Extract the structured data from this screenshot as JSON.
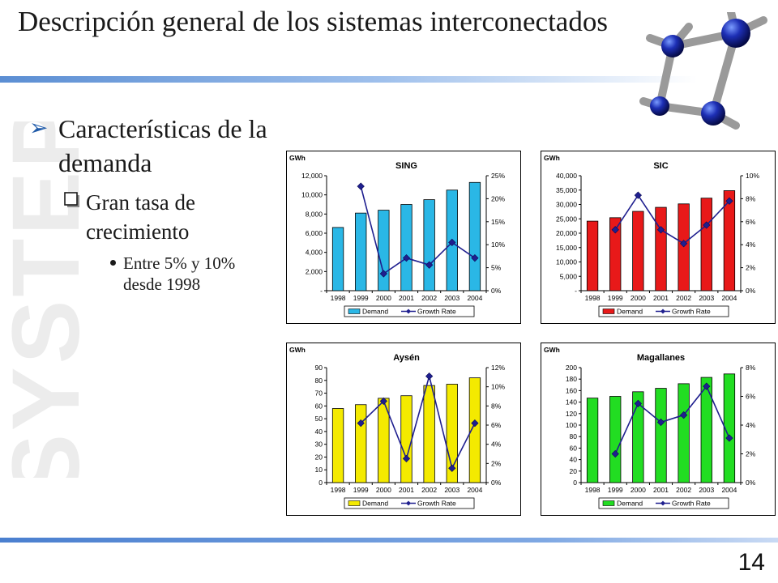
{
  "slide": {
    "title": "Descripción general de los sistemas interconectados",
    "bullet1": "Características de la demanda",
    "bullet2": "Gran tasa de crecimiento",
    "bullet3": "Entre 5% y 10% desde 1998",
    "page_number": "14",
    "watermark": "SYSTEP"
  },
  "colors": {
    "marker_blue": "#1f1f8f",
    "accent_blue": "#1f5aa8"
  },
  "chart_data": [
    {
      "type": "bar",
      "title": "SING",
      "unit_label": "GWh",
      "color": "#2ab7e6",
      "categories": [
        "1998",
        "1999",
        "2000",
        "2001",
        "2002",
        "2003",
        "2004"
      ],
      "series": [
        {
          "name": "Demand",
          "type": "bar",
          "axis": "left",
          "values": [
            6600,
            8100,
            8400,
            9000,
            9500,
            10500,
            11300
          ]
        },
        {
          "name": "Growth Rate",
          "type": "line",
          "axis": "right",
          "values": [
            null,
            0.227,
            0.037,
            0.071,
            0.056,
            0.105,
            0.071
          ]
        }
      ],
      "ylim": [
        0,
        12000
      ],
      "y_ticks": [
        0,
        2000,
        4000,
        6000,
        8000,
        10000,
        12000
      ],
      "y_tick_labels": [
        "-",
        "2,000",
        "4,000",
        "6,000",
        "8,000",
        "10,000",
        "12,000"
      ],
      "y2lim": [
        0,
        0.25
      ],
      "y2_ticks": [
        0,
        0.05,
        0.1,
        0.15,
        0.2,
        0.25
      ],
      "y2_tick_labels": [
        "0%",
        "5%",
        "10%",
        "15%",
        "20%",
        "25%"
      ],
      "legend_position": "bottom",
      "grid": false
    },
    {
      "type": "bar",
      "title": "SIC",
      "unit_label": "GWh",
      "color": "#e81919",
      "categories": [
        "1998",
        "1999",
        "2000",
        "2001",
        "2002",
        "2003",
        "2004"
      ],
      "series": [
        {
          "name": "Demand",
          "type": "bar",
          "axis": "left",
          "values": [
            24200,
            25400,
            27600,
            29000,
            30200,
            32200,
            34800
          ]
        },
        {
          "name": "Growth Rate",
          "type": "line",
          "axis": "right",
          "values": [
            null,
            0.053,
            0.083,
            0.053,
            0.041,
            0.057,
            0.078
          ]
        }
      ],
      "ylim": [
        0,
        40000
      ],
      "y_ticks": [
        0,
        5000,
        10000,
        15000,
        20000,
        25000,
        30000,
        35000,
        40000
      ],
      "y_tick_labels": [
        "-",
        "5,000",
        "10,000",
        "15,000",
        "20,000",
        "25,000",
        "30,000",
        "35,000",
        "40,000"
      ],
      "y2lim": [
        0,
        0.1
      ],
      "y2_ticks": [
        0,
        0.02,
        0.04,
        0.06,
        0.08,
        0.1
      ],
      "y2_tick_labels": [
        "0%",
        "2%",
        "4%",
        "6%",
        "8%",
        "10%"
      ],
      "legend_position": "bottom",
      "grid": false
    },
    {
      "type": "bar",
      "title": "Aysén",
      "unit_label": "GWh",
      "color": "#f4ea00",
      "categories": [
        "1998",
        "1999",
        "2000",
        "2001",
        "2002",
        "2003",
        "2004"
      ],
      "series": [
        {
          "name": "Demand",
          "type": "bar",
          "axis": "left",
          "values": [
            58,
            61,
            66,
            68,
            76,
            77,
            82
          ]
        },
        {
          "name": "Growth Rate",
          "type": "line",
          "axis": "right",
          "values": [
            null,
            0.062,
            0.085,
            0.025,
            0.111,
            0.015,
            0.062
          ]
        }
      ],
      "ylim": [
        0,
        90
      ],
      "y_ticks": [
        0,
        10,
        20,
        30,
        40,
        50,
        60,
        70,
        80,
        90
      ],
      "y_tick_labels": [
        "0",
        "10",
        "20",
        "30",
        "40",
        "50",
        "60",
        "70",
        "80",
        "90"
      ],
      "y2lim": [
        0,
        0.12
      ],
      "y2_ticks": [
        0,
        0.02,
        0.04,
        0.06,
        0.08,
        0.1,
        0.12
      ],
      "y2_tick_labels": [
        "0%",
        "2%",
        "4%",
        "6%",
        "8%",
        "10%",
        "12%"
      ],
      "legend_position": "bottom",
      "grid": false
    },
    {
      "type": "bar",
      "title": "Magallanes",
      "unit_label": "GWh",
      "color": "#22dd22",
      "categories": [
        "1998",
        "1999",
        "2000",
        "2001",
        "2002",
        "2003",
        "2004"
      ],
      "series": [
        {
          "name": "Demand",
          "type": "bar",
          "axis": "left",
          "values": [
            147,
            150,
            158,
            164,
            172,
            183,
            189
          ]
        },
        {
          "name": "Growth Rate",
          "type": "line",
          "axis": "right",
          "values": [
            null,
            0.02,
            0.055,
            0.042,
            0.047,
            0.067,
            0.031
          ]
        }
      ],
      "ylim": [
        0,
        200
      ],
      "y_ticks": [
        0,
        20,
        40,
        60,
        80,
        100,
        120,
        140,
        160,
        180,
        200
      ],
      "y_tick_labels": [
        "0",
        "20",
        "40",
        "60",
        "80",
        "100",
        "120",
        "140",
        "160",
        "180",
        "200"
      ],
      "y2lim": [
        0,
        0.08
      ],
      "y2_ticks": [
        0,
        0.02,
        0.04,
        0.06,
        0.08
      ],
      "y2_tick_labels": [
        "0%",
        "2%",
        "4%",
        "6%",
        "8%"
      ],
      "legend_position": "bottom",
      "grid": false
    }
  ]
}
